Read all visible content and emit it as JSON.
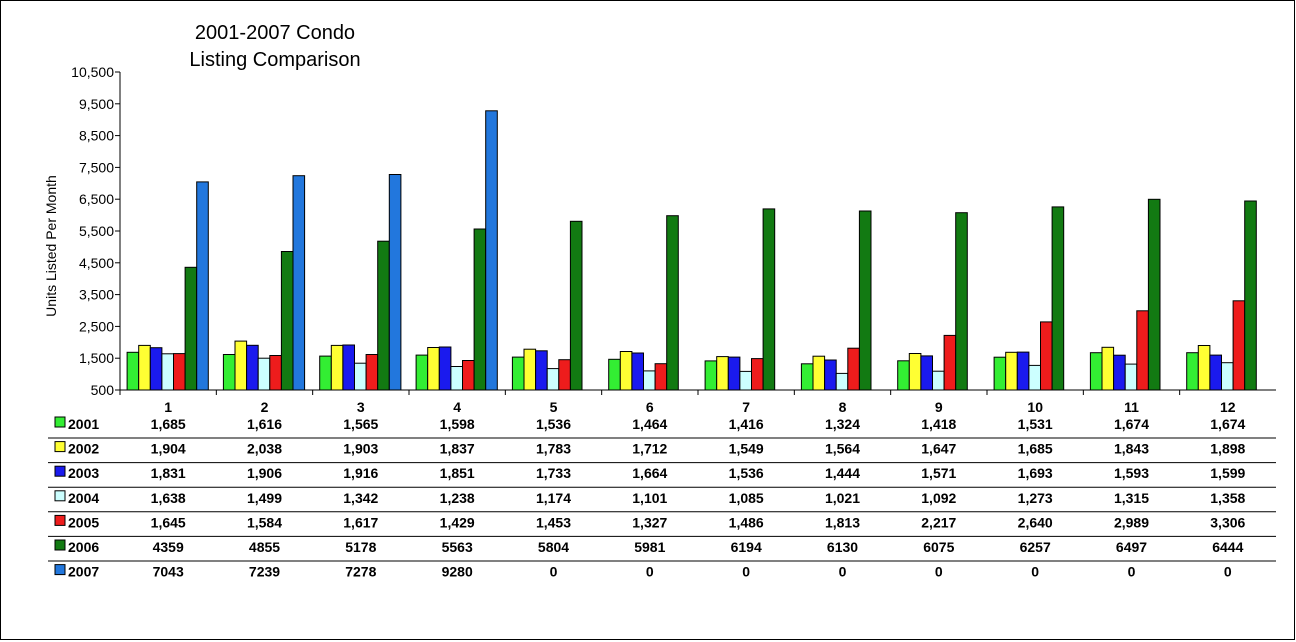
{
  "chart_data": {
    "type": "bar",
    "title_lines": [
      "2001-2007 Condo",
      "Listing Comparison"
    ],
    "xlabel": "",
    "ylabel": "Units Listed Per Month",
    "ylim": [
      500,
      10500
    ],
    "yticks": [
      "500",
      "1,500",
      "2,500",
      "3,500",
      "4,500",
      "5,500",
      "6,500",
      "7,500",
      "8,500",
      "9,500",
      "10,500"
    ],
    "categories": [
      "1",
      "2",
      "3",
      "4",
      "5",
      "6",
      "7",
      "8",
      "9",
      "10",
      "11",
      "12"
    ],
    "grid": false,
    "legend": "data table below chart",
    "series": [
      {
        "name": "2001",
        "color": "#33ee33",
        "values": [
          1685,
          1616,
          1565,
          1598,
          1536,
          1464,
          1416,
          1324,
          1418,
          1531,
          1674,
          1674
        ],
        "labels": [
          "1,685",
          "1,616",
          "1,565",
          "1,598",
          "1,536",
          "1,464",
          "1,416",
          "1,324",
          "1,418",
          "1,531",
          "1,674",
          "1,674"
        ]
      },
      {
        "name": "2002",
        "color": "#ffff33",
        "values": [
          1904,
          2038,
          1903,
          1837,
          1783,
          1712,
          1549,
          1564,
          1647,
          1685,
          1843,
          1898
        ],
        "labels": [
          "1,904",
          "2,038",
          "1,903",
          "1,837",
          "1,783",
          "1,712",
          "1,549",
          "1,564",
          "1,647",
          "1,685",
          "1,843",
          "1,898"
        ]
      },
      {
        "name": "2003",
        "color": "#1a1aee",
        "values": [
          1831,
          1906,
          1916,
          1851,
          1733,
          1664,
          1536,
          1444,
          1571,
          1693,
          1593,
          1599
        ],
        "labels": [
          "1,831",
          "1,906",
          "1,916",
          "1,851",
          "1,733",
          "1,664",
          "1,536",
          "1,444",
          "1,571",
          "1,693",
          "1,593",
          "1,599"
        ]
      },
      {
        "name": "2004",
        "color": "#ccffff",
        "values": [
          1638,
          1499,
          1342,
          1238,
          1174,
          1101,
          1085,
          1021,
          1092,
          1273,
          1315,
          1358
        ],
        "labels": [
          "1,638",
          "1,499",
          "1,342",
          "1,238",
          "1,174",
          "1,101",
          "1,085",
          "1,021",
          "1,092",
          "1,273",
          "1,315",
          "1,358"
        ]
      },
      {
        "name": "2005",
        "color": "#ee1c1c",
        "values": [
          1645,
          1584,
          1617,
          1429,
          1453,
          1327,
          1486,
          1813,
          2217,
          2640,
          2989,
          3306
        ],
        "labels": [
          "1,645",
          "1,584",
          "1,617",
          "1,429",
          "1,453",
          "1,327",
          "1,486",
          "1,813",
          "2,217",
          "2,640",
          "2,989",
          "3,306"
        ]
      },
      {
        "name": "2006",
        "color": "#127a12",
        "values": [
          4359,
          4855,
          5178,
          5563,
          5804,
          5981,
          6194,
          6130,
          6075,
          6257,
          6497,
          6444
        ],
        "labels": [
          "4359",
          "4855",
          "5178",
          "5563",
          "5804",
          "5981",
          "6194",
          "6130",
          "6075",
          "6257",
          "6497",
          "6444"
        ]
      },
      {
        "name": "2007",
        "color": "#2277dd",
        "values": [
          7043,
          7239,
          7278,
          9280,
          0,
          0,
          0,
          0,
          0,
          0,
          0,
          0
        ],
        "labels": [
          "7043",
          "7239",
          "7278",
          "9280",
          "0",
          "0",
          "0",
          "0",
          "0",
          "0",
          "0",
          "0"
        ]
      }
    ]
  }
}
